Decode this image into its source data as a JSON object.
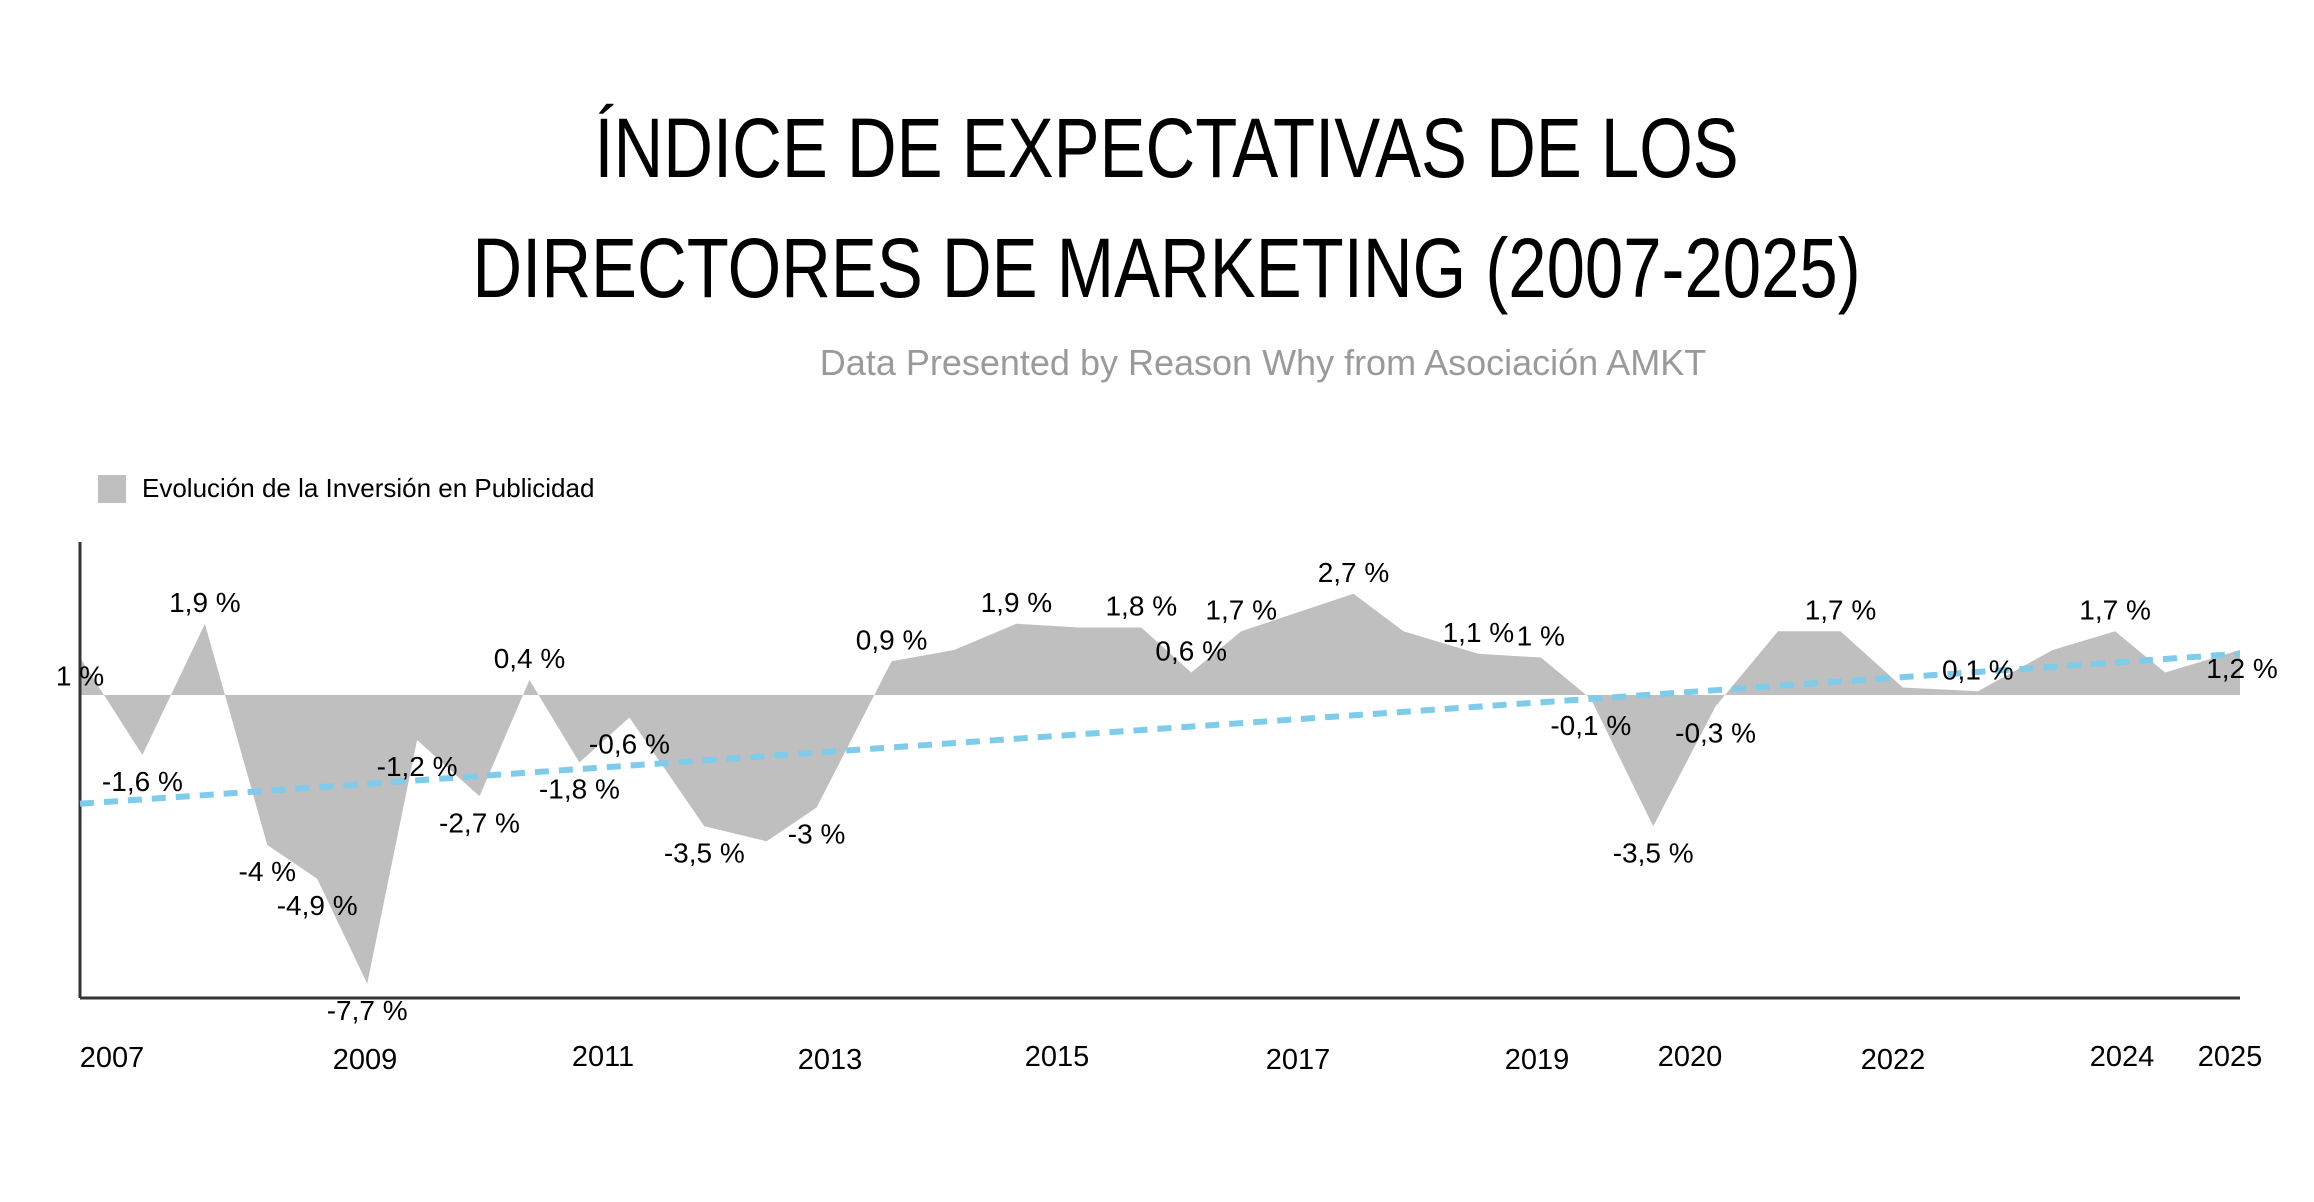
{
  "title_line1": "ÍNDICE DE EXPECTATIVAS DE LOS",
  "title_line2": "DIRECTORES DE MARKETING (2007-2025)",
  "subtitle": "Data Presented by Reason Why from Asociación AMKT",
  "colors": {
    "area": "#bfbfbf",
    "trend": "#7ecbea",
    "axis": "#333333",
    "subtitle": "#9a9a9a"
  },
  "chart_data": {
    "type": "area",
    "title": "ÍNDICE DE EXPECTATIVAS DE LOS DIRECTORES DE MARKETING (2007-2025)",
    "subtitle": "Data Presented by Reason Why from Asociación AMKT",
    "legend": {
      "position": "top-left",
      "entries": [
        "Evolución de la Inversión en Publicidad"
      ]
    },
    "x_ticks": [
      "2007",
      "2009",
      "2011",
      "2013",
      "2015",
      "2017",
      "2019",
      "2020",
      "2022",
      "2024",
      "2025"
    ],
    "ylim": [
      -8,
      3
    ],
    "grid": false,
    "series": [
      {
        "name": "Evolución de la Inversión en Publicidad",
        "points": [
          {
            "x": 2007.0,
            "y": 1.0,
            "label": "1 %"
          },
          {
            "x": 2007.5,
            "y": -1.6,
            "label": "-1,6 %"
          },
          {
            "x": 2008.0,
            "y": 1.9,
            "label": "1,9 %"
          },
          {
            "x": 2008.5,
            "y": -4.0,
            "label": "-4 %"
          },
          {
            "x": 2008.9,
            "y": -4.9,
            "label": "-4,9 %"
          },
          {
            "x": 2009.3,
            "y": -7.7,
            "label": "-7,7 %"
          },
          {
            "x": 2009.7,
            "y": -1.2,
            "label": "-1,2 %"
          },
          {
            "x": 2010.2,
            "y": -2.7,
            "label": "-2,7 %"
          },
          {
            "x": 2010.6,
            "y": 0.4,
            "label": "0,4 %"
          },
          {
            "x": 2011.0,
            "y": -1.8,
            "label": "-1,8 %"
          },
          {
            "x": 2011.4,
            "y": -0.6,
            "label": "-0,6 %"
          },
          {
            "x": 2012.0,
            "y": -3.5,
            "label": "-3,5 %"
          },
          {
            "x": 2012.5,
            "y": -3.9,
            "label": ""
          },
          {
            "x": 2012.9,
            "y": -3.0,
            "label": "-3 %"
          },
          {
            "x": 2013.5,
            "y": 0.9,
            "label": "0,9 %"
          },
          {
            "x": 2014.0,
            "y": 1.2,
            "label": ""
          },
          {
            "x": 2014.5,
            "y": 1.9,
            "label": "1,9 %"
          },
          {
            "x": 2015.0,
            "y": 1.8,
            "label": ""
          },
          {
            "x": 2015.5,
            "y": 1.8,
            "label": "1,8 %"
          },
          {
            "x": 2015.9,
            "y": 0.6,
            "label": "0,6 %"
          },
          {
            "x": 2016.3,
            "y": 1.7,
            "label": "1,7 %"
          },
          {
            "x": 2017.2,
            "y": 2.7,
            "label": "2,7 %"
          },
          {
            "x": 2017.6,
            "y": 1.7,
            "label": ""
          },
          {
            "x": 2018.2,
            "y": 1.1,
            "label": "1,1 %"
          },
          {
            "x": 2018.7,
            "y": 1.0,
            "label": "1 %"
          },
          {
            "x": 2019.1,
            "y": -0.1,
            "label": "-0,1 %"
          },
          {
            "x": 2019.6,
            "y": -3.5,
            "label": "-3,5 %"
          },
          {
            "x": 2020.1,
            "y": -0.3,
            "label": "-0,3 %"
          },
          {
            "x": 2020.6,
            "y": 1.7,
            "label": ""
          },
          {
            "x": 2021.1,
            "y": 1.7,
            "label": "1,7 %"
          },
          {
            "x": 2021.6,
            "y": 0.2,
            "label": ""
          },
          {
            "x": 2022.2,
            "y": 0.1,
            "label": "0,1 %"
          },
          {
            "x": 2022.8,
            "y": 1.2,
            "label": ""
          },
          {
            "x": 2023.3,
            "y": 1.7,
            "label": "1,7 %"
          },
          {
            "x": 2023.7,
            "y": 0.6,
            "label": ""
          },
          {
            "x": 2024.3,
            "y": 1.2,
            "label": "1,2 %"
          }
        ]
      }
    ],
    "trendline": {
      "style": "dashed",
      "from": {
        "x": 2007.0,
        "y": -2.9
      },
      "to": {
        "x": 2024.3,
        "y": 1.1
      }
    }
  }
}
